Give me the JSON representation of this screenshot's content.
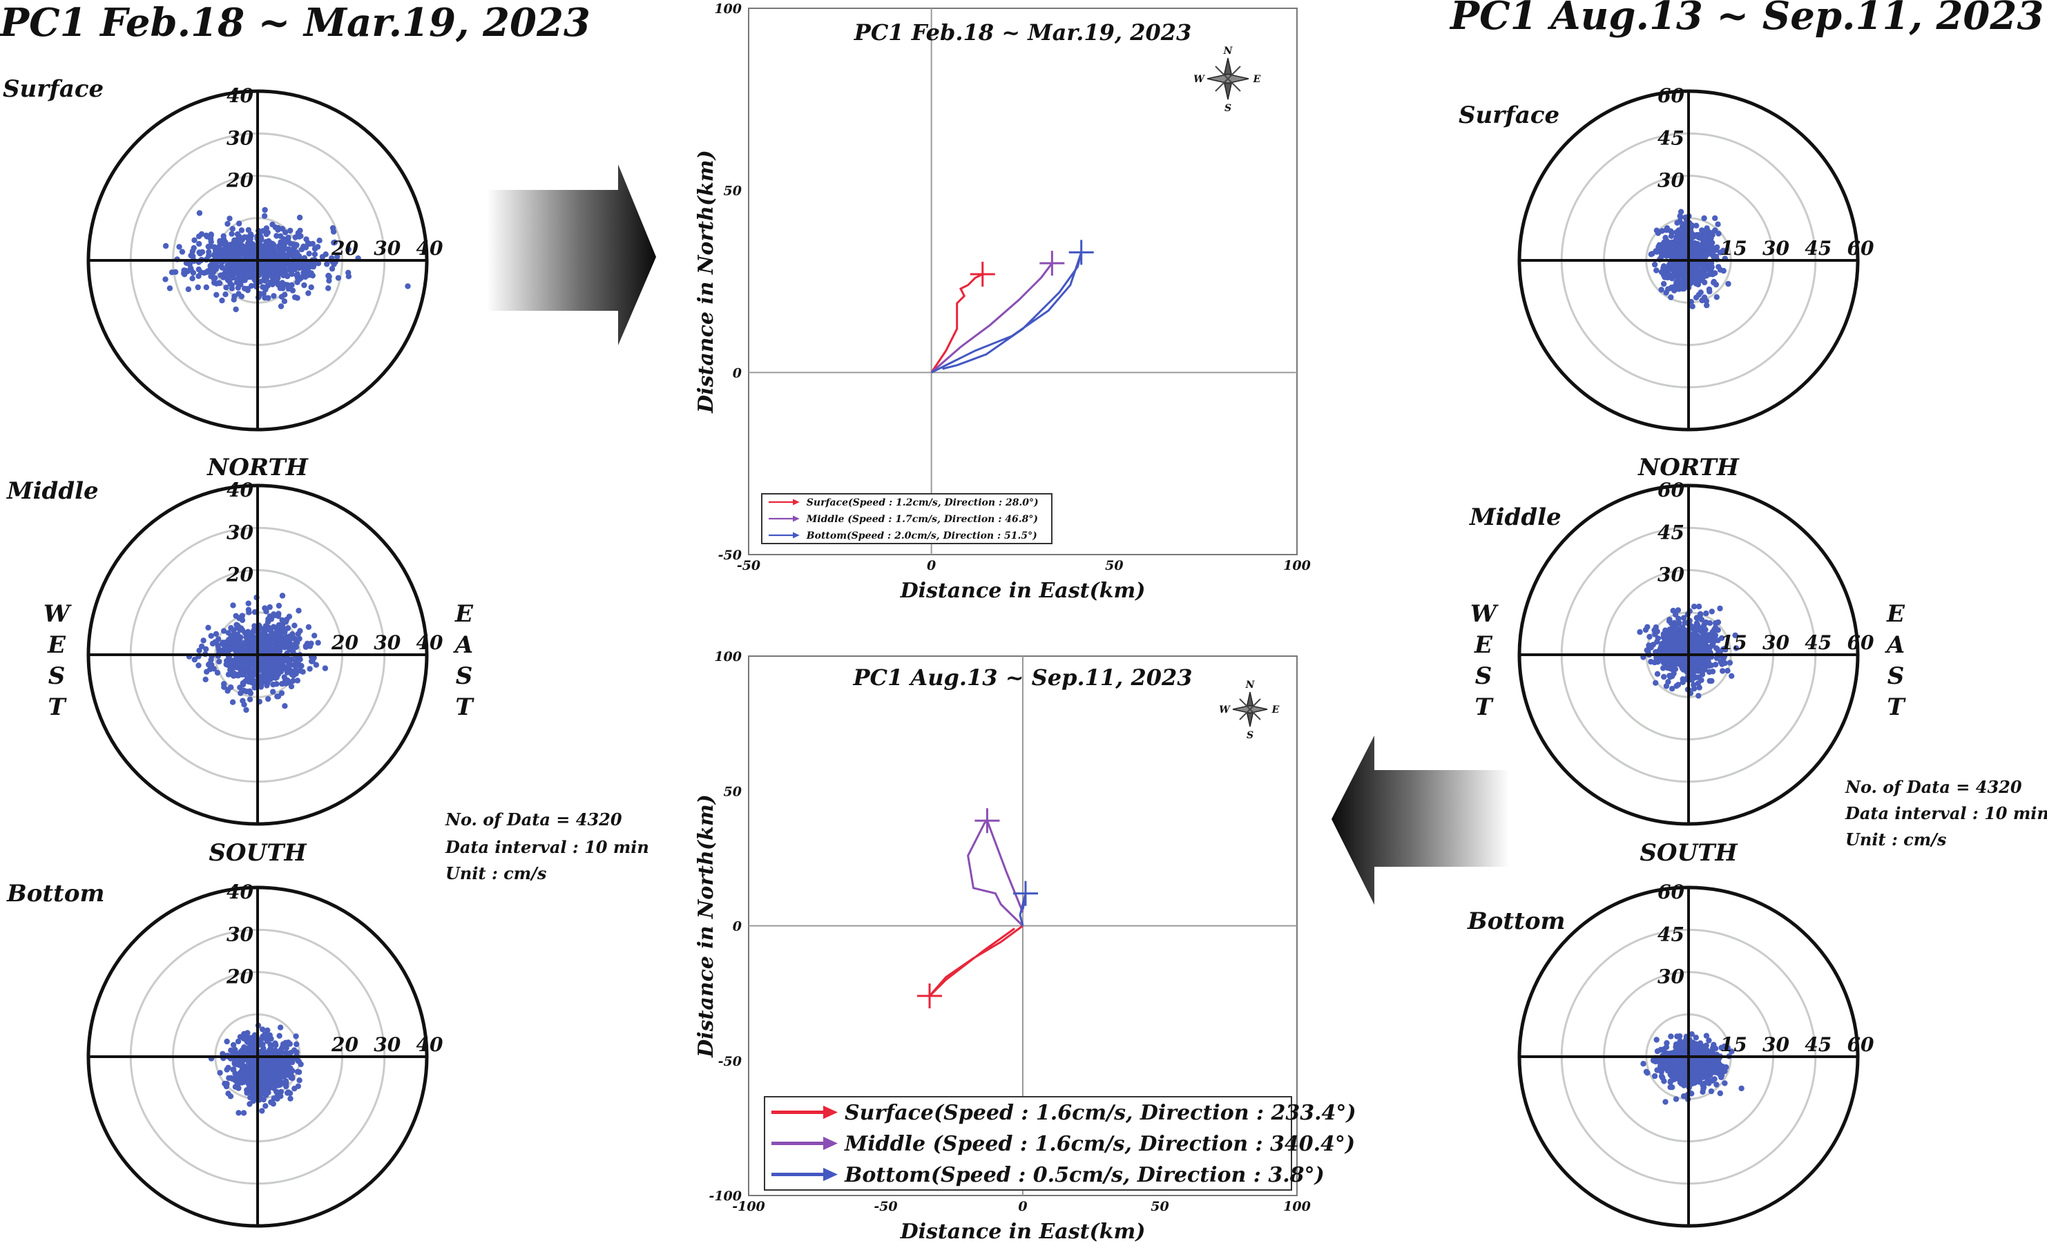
{
  "colors": {
    "scatter": "#4b5fbe",
    "surface": "#e8263a",
    "middle": "#8a4fb3",
    "bottom": "#4458c2",
    "ring": "#c9ccc9",
    "axis": "#111111"
  },
  "left": {
    "title": "PC1 Feb.18 ~ Mar.19, 2023",
    "directions": {
      "north": "NORTH",
      "south": "SOUTH",
      "west": [
        "W",
        "E",
        "S",
        "T"
      ],
      "east": [
        "E",
        "A",
        "S",
        "T"
      ]
    },
    "info": [
      "No. of Data = 4320",
      "Data interval : 10 min",
      "Unit : cm/s"
    ]
  },
  "right": {
    "title": "PC1 Aug.13 ~ Sep.11, 2023",
    "directions": {
      "north": "NORTH",
      "south": "SOUTH",
      "west": [
        "W",
        "E",
        "S",
        "T"
      ],
      "east": [
        "E",
        "A",
        "S",
        "T"
      ]
    },
    "info": [
      "No. of Data = 4320",
      "Data interval : 10 min",
      "Unit : cm/s"
    ]
  },
  "compass": {
    "n": "N",
    "s": "S",
    "e": "E",
    "w": "W"
  },
  "chart_data": [
    {
      "type": "scatter",
      "subtype": "polar",
      "id": "lp1",
      "label": "Surface",
      "rings": [
        10,
        20,
        30,
        40
      ],
      "ring_labels": [
        "20",
        "30",
        "40"
      ],
      "east_labels": [
        "20",
        "30",
        "40"
      ],
      "rmax": 40,
      "cloud": {
        "cx": 0,
        "cy": 0,
        "rx": 14,
        "ry": 7,
        "n": 700,
        "seed": 11
      }
    },
    {
      "type": "scatter",
      "subtype": "polar",
      "id": "lp2",
      "label": "Middle",
      "rings": [
        10,
        20,
        30,
        40
      ],
      "ring_labels": [
        "20",
        "30",
        "40"
      ],
      "east_labels": [
        "20",
        "30",
        "40"
      ],
      "rmax": 40,
      "cloud": {
        "cx": 0,
        "cy": 0,
        "rx": 10,
        "ry": 8,
        "n": 650,
        "seed": 23
      }
    },
    {
      "type": "scatter",
      "subtype": "polar",
      "id": "lp3",
      "label": "Bottom",
      "rings": [
        10,
        20,
        30,
        40
      ],
      "ring_labels": [
        "20",
        "30",
        "40"
      ],
      "east_labels": [
        "20",
        "30",
        "40"
      ],
      "rmax": 40,
      "cloud": {
        "cx": 1,
        "cy": -2,
        "rx": 7,
        "ry": 7,
        "n": 550,
        "seed": 37
      }
    },
    {
      "type": "scatter",
      "subtype": "polar",
      "id": "rp1",
      "label": "Surface",
      "rings": [
        15,
        30,
        45,
        60
      ],
      "ring_labels": [
        "30",
        "45",
        "60"
      ],
      "east_labels": [
        "15",
        "30",
        "45",
        "60"
      ],
      "rmax": 60,
      "cloud": {
        "cx": 0,
        "cy": 1,
        "rx": 9,
        "ry": 11,
        "n": 650,
        "seed": 41
      }
    },
    {
      "type": "scatter",
      "subtype": "polar",
      "id": "rp2",
      "label": "Middle",
      "rings": [
        15,
        30,
        45,
        60
      ],
      "ring_labels": [
        "30",
        "45",
        "60"
      ],
      "east_labels": [
        "15",
        "30",
        "45",
        "60"
      ],
      "rmax": 60,
      "cloud": {
        "cx": 0,
        "cy": 2,
        "rx": 11,
        "ry": 10,
        "n": 650,
        "seed": 53
      }
    },
    {
      "type": "scatter",
      "subtype": "polar",
      "id": "rp3",
      "label": "Bottom",
      "rings": [
        15,
        30,
        45,
        60
      ],
      "ring_labels": [
        "30",
        "45",
        "60"
      ],
      "east_labels": [
        "15",
        "30",
        "45",
        "60"
      ],
      "rmax": 60,
      "cloud": {
        "cx": 0,
        "cy": -3,
        "rx": 10,
        "ry": 7,
        "n": 600,
        "seed": 67
      }
    },
    {
      "type": "line",
      "subtype": "progressive-vector",
      "id": "pv1",
      "title": "PC1 Feb.18 ~ Mar.19, 2023",
      "xlabel": "Distance in East(km)",
      "ylabel": "Distance in North(km)",
      "xlim": [
        -50,
        100
      ],
      "ylim": [
        -50,
        100
      ],
      "xticks": [
        -50,
        0,
        50,
        100
      ],
      "yticks": [
        -50,
        0,
        50,
        100
      ],
      "series": [
        {
          "name": "Surface",
          "legend": "Surface(Speed : 1.2cm/s, Direction : 28.0°)",
          "x": [
            0,
            4,
            7,
            7,
            9,
            8,
            10,
            12,
            14
          ],
          "y": [
            0,
            6,
            12,
            19,
            21,
            23,
            24,
            26,
            27
          ]
        },
        {
          "name": "Middle",
          "legend": "Middle (Speed : 1.7cm/s, Direction : 46.8°)",
          "x": [
            0,
            8,
            16,
            24,
            30,
            33,
            30
          ],
          "y": [
            0,
            7,
            13,
            20,
            26,
            30,
            26
          ]
        },
        {
          "name": "Bottom",
          "legend": "Bottom(Speed : 2.0cm/s, Direction : 51.5°)",
          "x": [
            0,
            6,
            12,
            22,
            32,
            38,
            41,
            40,
            35,
            25,
            15,
            7,
            3
          ],
          "y": [
            0,
            3,
            6,
            10,
            17,
            24,
            33,
            29,
            22,
            12,
            5,
            2,
            1
          ]
        }
      ]
    },
    {
      "type": "line",
      "subtype": "progressive-vector",
      "id": "pv2",
      "title": "PC1 Aug.13 ~ Sep.11, 2023",
      "xlabel": "Distance in East(km)",
      "ylabel": "Distance in North(km)",
      "xlim": [
        -100,
        100
      ],
      "ylim": [
        -100,
        100
      ],
      "xticks": [
        -100,
        -50,
        0,
        50,
        100
      ],
      "yticks": [
        -100,
        -50,
        0,
        50,
        100
      ],
      "series": [
        {
          "name": "Surface",
          "legend": "Surface(Speed : 1.6cm/s, Direction : 233.4°)",
          "x": [
            0,
            -8,
            -18,
            -28,
            -34,
            -28,
            -14,
            -3
          ],
          "y": [
            0,
            -6,
            -12,
            -19,
            -26,
            -20,
            -9,
            -1
          ]
        },
        {
          "name": "Middle",
          "legend": "Middle (Speed : 1.6cm/s, Direction : 340.4°)",
          "x": [
            0,
            -4,
            -8,
            -10,
            -18,
            -20,
            -14,
            -13,
            -6,
            0
          ],
          "y": [
            0,
            4,
            8,
            12,
            14,
            26,
            38,
            39,
            20,
            5
          ]
        },
        {
          "name": "Bottom",
          "legend": "Bottom(Speed : 0.5cm/s, Direction : 3.8°)",
          "x": [
            0,
            -1,
            0,
            1,
            0
          ],
          "y": [
            0,
            4,
            8,
            12,
            6
          ]
        }
      ]
    }
  ]
}
